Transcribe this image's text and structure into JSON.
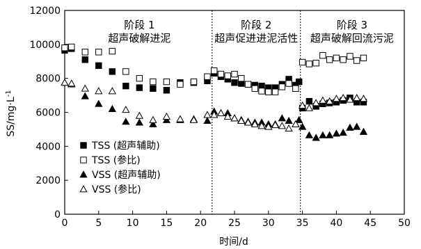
{
  "chart_data": {
    "type": "scatter",
    "xlabel": "时间/d",
    "ylabel": "SS/mg·L",
    "ylabel_sup": "-1",
    "xlim": [
      0,
      50
    ],
    "ylim": [
      0,
      12000
    ],
    "x_ticks": [
      "0",
      "5",
      "10",
      "15",
      "20",
      "25",
      "30",
      "35",
      "40",
      "45",
      "50"
    ],
    "y_ticks": [
      "0",
      "2000",
      "4000",
      "6000",
      "8000",
      "10000",
      "12000"
    ],
    "stage_dividers": [
      21.7,
      34.7
    ],
    "stages": [
      {
        "title": "阶段 1",
        "subtitle": "超声破解进泥",
        "x_center": 11
      },
      {
        "title": "阶段 2",
        "subtitle": "超声促进进泥活性",
        "x_center": 28.2
      },
      {
        "title": "阶段  3",
        "subtitle": "超声破解回流污泥",
        "x_center": 42.3
      }
    ],
    "series": [
      {
        "name": "TSS (超声辅助)",
        "marker": "square-filled",
        "points": [
          [
            0,
            9650
          ],
          [
            1,
            9750
          ],
          [
            3,
            9100
          ],
          [
            5,
            8750
          ],
          [
            7,
            8400
          ],
          [
            9,
            7550
          ],
          [
            11,
            7450
          ],
          [
            13,
            7400
          ],
          [
            15,
            7300
          ],
          [
            17,
            7750
          ],
          [
            19,
            7750
          ],
          [
            21,
            7850
          ],
          [
            22,
            8300
          ],
          [
            23,
            8100
          ],
          [
            24,
            7950
          ],
          [
            25,
            7750
          ],
          [
            26,
            7700
          ],
          [
            27,
            7650
          ],
          [
            28,
            7600
          ],
          [
            29,
            7550
          ],
          [
            30,
            7450
          ],
          [
            31,
            7450
          ],
          [
            32,
            7650
          ],
          [
            33,
            7950
          ],
          [
            34,
            7600
          ],
          [
            34.5,
            7800
          ],
          [
            35,
            6250
          ],
          [
            36,
            6650
          ],
          [
            37,
            6350
          ],
          [
            38,
            6500
          ],
          [
            39,
            6550
          ],
          [
            40,
            6600
          ],
          [
            41,
            6700
          ],
          [
            42,
            6850
          ],
          [
            43,
            6600
          ],
          [
            44,
            6600
          ]
        ]
      },
      {
        "name": "TSS (参比)",
        "marker": "square-open",
        "points": [
          [
            0,
            9800
          ],
          [
            1,
            9850
          ],
          [
            3,
            9550
          ],
          [
            5,
            9550
          ],
          [
            7,
            9600
          ],
          [
            9,
            8400
          ],
          [
            11,
            8000
          ],
          [
            13,
            7800
          ],
          [
            15,
            7800
          ],
          [
            17,
            7650
          ],
          [
            19,
            7800
          ],
          [
            21,
            8100
          ],
          [
            22,
            8450
          ],
          [
            23,
            8250
          ],
          [
            24,
            8150
          ],
          [
            25,
            8250
          ],
          [
            26,
            8000
          ],
          [
            27,
            7650
          ],
          [
            28,
            7400
          ],
          [
            29,
            7250
          ],
          [
            30,
            7200
          ],
          [
            31,
            7200
          ],
          [
            32,
            7500
          ],
          [
            33,
            7700
          ],
          [
            34,
            7400
          ],
          [
            35,
            8950
          ],
          [
            36,
            8850
          ],
          [
            37,
            8900
          ],
          [
            38,
            9350
          ],
          [
            39,
            9100
          ],
          [
            40,
            9200
          ],
          [
            41,
            9100
          ],
          [
            42,
            9300
          ],
          [
            43,
            9050
          ],
          [
            44,
            9200
          ]
        ]
      },
      {
        "name": "VSS (超声辅助)",
        "marker": "triangle-filled",
        "points": [
          [
            0,
            7750
          ],
          [
            1,
            7650
          ],
          [
            3,
            6950
          ],
          [
            5,
            6500
          ],
          [
            7,
            6200
          ],
          [
            9,
            5450
          ],
          [
            11,
            5400
          ],
          [
            13,
            5300
          ],
          [
            15,
            5550
          ],
          [
            17,
            5550
          ],
          [
            19,
            5600
          ],
          [
            21,
            5500
          ],
          [
            22,
            6050
          ],
          [
            23,
            5950
          ],
          [
            24,
            5950
          ],
          [
            25,
            5650
          ],
          [
            26,
            5550
          ],
          [
            27,
            5450
          ],
          [
            28,
            5400
          ],
          [
            29,
            5400
          ],
          [
            30,
            5300
          ],
          [
            31,
            5300
          ],
          [
            32,
            5650
          ],
          [
            33,
            5500
          ],
          [
            34,
            5300
          ],
          [
            34.5,
            5550
          ],
          [
            35,
            5150
          ],
          [
            36,
            4650
          ],
          [
            37,
            4500
          ],
          [
            38,
            4650
          ],
          [
            39,
            4650
          ],
          [
            40,
            4750
          ],
          [
            41,
            4800
          ],
          [
            42,
            5100
          ],
          [
            43,
            5150
          ],
          [
            44,
            4850
          ]
        ]
      },
      {
        "name": "VSS (参比)",
        "marker": "triangle-open",
        "points": [
          [
            0,
            7750
          ],
          [
            1,
            7700
          ],
          [
            3,
            7400
          ],
          [
            5,
            7250
          ],
          [
            7,
            7250
          ],
          [
            9,
            6150
          ],
          [
            11,
            5800
          ],
          [
            13,
            5550
          ],
          [
            15,
            5750
          ],
          [
            17,
            5600
          ],
          [
            19,
            5550
          ],
          [
            21,
            5850
          ],
          [
            22,
            5850
          ],
          [
            23,
            5950
          ],
          [
            24,
            5750
          ],
          [
            25,
            5650
          ],
          [
            26,
            5500
          ],
          [
            27,
            5400
          ],
          [
            28,
            5300
          ],
          [
            29,
            5200
          ],
          [
            30,
            5150
          ],
          [
            31,
            5250
          ],
          [
            32,
            5200
          ],
          [
            33,
            5050
          ],
          [
            34,
            5300
          ],
          [
            35,
            6400
          ],
          [
            36,
            6250
          ],
          [
            37,
            6550
          ],
          [
            38,
            6700
          ],
          [
            39,
            6650
          ],
          [
            40,
            6800
          ],
          [
            41,
            6850
          ],
          [
            42,
            6750
          ],
          [
            43,
            6850
          ],
          [
            44,
            6800
          ]
        ]
      }
    ],
    "legend": {
      "position": "bottom-left"
    }
  }
}
